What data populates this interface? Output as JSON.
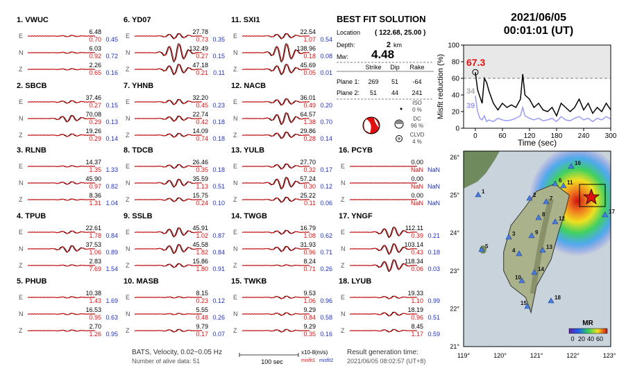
{
  "stations": [
    {
      "title": "1.  VWUC",
      "traces": [
        {
          "comp": "E",
          "amp": "6.48",
          "misfit1": "0.70",
          "misfit2": "0.45"
        },
        {
          "comp": "N",
          "amp": "6.03",
          "misfit1": "0.92",
          "misfit2": "0.72"
        },
        {
          "comp": "Z",
          "amp": "2.26",
          "misfit1": "0.65",
          "misfit2": "0.16"
        }
      ]
    },
    {
      "title": "2.  SBCB",
      "traces": [
        {
          "comp": "E",
          "amp": "37.46",
          "misfit1": "0.27",
          "misfit2": "0.15"
        },
        {
          "comp": "N",
          "amp": "70.08",
          "misfit1": "0.29",
          "misfit2": "0.13"
        },
        {
          "comp": "Z",
          "amp": "19.26",
          "misfit1": "0.29",
          "misfit2": "0.14"
        }
      ]
    },
    {
      "title": "3.  RLNB",
      "traces": [
        {
          "comp": "E",
          "amp": "14.37",
          "misfit1": "1.35",
          "misfit2": "1.33"
        },
        {
          "comp": "N",
          "amp": "45.90",
          "misfit1": "0.97",
          "misfit2": "0.82"
        },
        {
          "comp": "Z",
          "amp": "8.36",
          "misfit1": "1.31",
          "misfit2": "1.04"
        }
      ]
    },
    {
      "title": "4.  TPUB",
      "traces": [
        {
          "comp": "E",
          "amp": "22.61",
          "misfit1": "1.78",
          "misfit2": "0.84"
        },
        {
          "comp": "N",
          "amp": "37.53",
          "misfit1": "1.06",
          "misfit2": "0.89"
        },
        {
          "comp": "Z",
          "amp": "2.83",
          "misfit1": "7.69",
          "misfit2": "1.54"
        }
      ]
    },
    {
      "title": "5.  PHUB",
      "traces": [
        {
          "comp": "E",
          "amp": "10.38",
          "misfit1": "1.43",
          "misfit2": "1.69"
        },
        {
          "comp": "N",
          "amp": "16.53",
          "misfit1": "0.95",
          "misfit2": "0.63"
        },
        {
          "comp": "Z",
          "amp": "2.70",
          "misfit1": "1.26",
          "misfit2": "0.95"
        }
      ]
    },
    {
      "title": "6.  YD07",
      "traces": [
        {
          "comp": "E",
          "amp": "27.78",
          "misfit1": "0.73",
          "misfit2": "0.35"
        },
        {
          "comp": "N",
          "amp": "132.49",
          "misfit1": "0.27",
          "misfit2": "0.15"
        },
        {
          "comp": "Z",
          "amp": "47.18",
          "misfit1": "0.21",
          "misfit2": "0.11"
        }
      ]
    },
    {
      "title": "7.  YHNB",
      "traces": [
        {
          "comp": "E",
          "amp": "32.20",
          "misfit1": "0.45",
          "misfit2": "0.23"
        },
        {
          "comp": "N",
          "amp": "22.74",
          "misfit1": "0.42",
          "misfit2": "0.18"
        },
        {
          "comp": "Z",
          "amp": "14.09",
          "misfit1": "0.74",
          "misfit2": "0.18"
        }
      ]
    },
    {
      "title": "8.  TDCB",
      "traces": [
        {
          "comp": "E",
          "amp": "26.46",
          "misfit1": "0.35",
          "misfit2": "0.18"
        },
        {
          "comp": "N",
          "amp": "35.59",
          "misfit1": "1.13",
          "misfit2": "0.51"
        },
        {
          "comp": "Z",
          "amp": "15.75",
          "misfit1": "0.24",
          "misfit2": "0.10"
        }
      ]
    },
    {
      "title": "9.  SSLB",
      "traces": [
        {
          "comp": "E",
          "amp": "45.91",
          "misfit1": "1.02",
          "misfit2": "0.87"
        },
        {
          "comp": "N",
          "amp": "45.58",
          "misfit1": "1.82",
          "misfit2": "0.84"
        },
        {
          "comp": "Z",
          "amp": "15.86",
          "misfit1": "1.80",
          "misfit2": "0.91"
        }
      ]
    },
    {
      "title": "10.  MASB",
      "traces": [
        {
          "comp": "E",
          "amp": "8.15",
          "misfit1": "0.23",
          "misfit2": "0.12"
        },
        {
          "comp": "N",
          "amp": "5.55",
          "misfit1": "0.48",
          "misfit2": "0.26"
        },
        {
          "comp": "Z",
          "amp": "9.79",
          "misfit1": "0.17",
          "misfit2": "0.07"
        }
      ]
    },
    {
      "title": "11.  SXI1",
      "traces": [
        {
          "comp": "E",
          "amp": "22.54",
          "misfit1": "1.07",
          "misfit2": "0.54"
        },
        {
          "comp": "N",
          "amp": "138.96",
          "misfit1": "0.18",
          "misfit2": "0.08"
        },
        {
          "comp": "Z",
          "amp": "45.69",
          "misfit1": "0.05",
          "misfit2": "0.01"
        }
      ]
    },
    {
      "title": "12.  NACB",
      "traces": [
        {
          "comp": "E",
          "amp": "36.01",
          "misfit1": "0.49",
          "misfit2": "0.20"
        },
        {
          "comp": "N",
          "amp": "64.57",
          "misfit1": "1.38",
          "misfit2": "0.70"
        },
        {
          "comp": "Z",
          "amp": "29.86",
          "misfit1": "0.28",
          "misfit2": "0.14"
        }
      ]
    },
    {
      "title": "13.  YULB",
      "traces": [
        {
          "comp": "E",
          "amp": "27.70",
          "misfit1": "0.32",
          "misfit2": "0.17"
        },
        {
          "comp": "N",
          "amp": "57.24",
          "misfit1": "0.30",
          "misfit2": "0.12"
        },
        {
          "comp": "Z",
          "amp": "25.22",
          "misfit1": "0.11",
          "misfit2": "0.06"
        }
      ]
    },
    {
      "title": "14.  TWGB",
      "traces": [
        {
          "comp": "E",
          "amp": "16.79",
          "misfit1": "1.08",
          "misfit2": "0.62"
        },
        {
          "comp": "N",
          "amp": "31.93",
          "misfit1": "0.96",
          "misfit2": "0.71"
        },
        {
          "comp": "Z",
          "amp": "8.24",
          "misfit1": "0.71",
          "misfit2": "0.26"
        }
      ]
    },
    {
      "title": "15.  TWKB",
      "traces": [
        {
          "comp": "E",
          "amp": "9.53",
          "misfit1": "1.06",
          "misfit2": "0.96"
        },
        {
          "comp": "N",
          "amp": "9.29",
          "misfit1": "0.84",
          "misfit2": "0.58"
        },
        {
          "comp": "Z",
          "amp": "9.29",
          "misfit1": "0.35",
          "misfit2": "0.16"
        }
      ]
    },
    {
      "title": "16.  PCYB",
      "traces": [
        {
          "comp": "E",
          "amp": "0.00",
          "misfit1": "NaN",
          "misfit2": "NaN"
        },
        {
          "comp": "N",
          "amp": "0.00",
          "misfit1": "NaN",
          "misfit2": "NaN"
        },
        {
          "comp": "Z",
          "amp": "0.00",
          "misfit1": "NaN",
          "misfit2": "NaN"
        }
      ]
    },
    {
      "title": "17.  YNGF",
      "traces": [
        {
          "comp": "E",
          "amp": "112.11",
          "misfit1": "0.39",
          "misfit2": "0.21"
        },
        {
          "comp": "N",
          "amp": "103.14",
          "misfit1": "0.43",
          "misfit2": "0.18"
        },
        {
          "comp": "Z",
          "amp": "118.34",
          "misfit1": "0.06",
          "misfit2": "0.03"
        }
      ]
    },
    {
      "title": "18.  LYUB",
      "traces": [
        {
          "comp": "E",
          "amp": "19.33",
          "misfit1": "1.10",
          "misfit2": "0.99"
        },
        {
          "comp": "N",
          "amp": "18.19",
          "misfit1": "0.96",
          "misfit2": "0.51"
        },
        {
          "comp": "Z",
          "amp": "8.45",
          "misfit1": "1.17",
          "misfit2": "0.59"
        }
      ]
    }
  ],
  "solution": {
    "title": "BEST FIT SOLUTION",
    "location_label": "Location",
    "location": "( 122.68, 25.00 )",
    "depth_label": "Depth:",
    "depth": "2",
    "depth_unit": "km",
    "mw_label": "Mw:",
    "mw": "4.48",
    "plane_headers": [
      "Strike",
      "Dip",
      "Rake"
    ],
    "planes": [
      {
        "label": "Plane 1:",
        "values": [
          "269",
          "51",
          "-64"
        ]
      },
      {
        "label": "Plane 2:",
        "values": [
          "51",
          "44",
          "241"
        ]
      }
    ],
    "components": [
      {
        "name": "ISO",
        "percent": "0 %"
      },
      {
        "name": "DC",
        "percent": "96 %"
      },
      {
        "name": "CLVD",
        "percent": "4 %"
      }
    ]
  },
  "event": {
    "date": "2021/06/05",
    "time": "00:01:01  (UT)"
  },
  "chart_data": {
    "type": "line",
    "ylabel": "Misfit reduction (%)",
    "xlabel": "Time (sec)",
    "x": [
      0,
      5,
      10,
      15,
      20,
      25,
      30,
      40,
      50,
      60,
      70,
      80,
      90,
      100,
      105,
      110,
      120,
      130,
      140,
      150,
      160,
      170,
      180,
      190,
      200,
      210,
      220,
      230,
      240,
      250,
      260,
      270,
      280,
      290,
      300
    ],
    "xlim": [
      -26,
      300
    ],
    "xticks": [
      0,
      60,
      120,
      180,
      240,
      300
    ],
    "ylim": [
      0,
      100
    ],
    "yticks": [
      0,
      20,
      40,
      60,
      80,
      100
    ],
    "reference_line": 60,
    "series": [
      {
        "color": "#000000",
        "values": [
          67.3,
          46,
          38,
          30,
          60,
          55,
          45,
          30,
          22,
          30,
          25,
          28,
          25,
          35,
          65,
          40,
          35,
          25,
          30,
          22,
          20,
          25,
          15,
          30,
          25,
          20,
          25,
          35,
          22,
          30,
          18,
          25,
          20,
          30,
          22
        ]
      },
      {
        "color": "#9a9cf4",
        "values": [
          39,
          20,
          12,
          10,
          15,
          8,
          10,
          8,
          12,
          10,
          9,
          10,
          12,
          15,
          25,
          15,
          12,
          10,
          12,
          9,
          10,
          12,
          8,
          14,
          10,
          9,
          12,
          14,
          10,
          12,
          8,
          12,
          10,
          14,
          11
        ]
      }
    ],
    "annotations": [
      {
        "text": "67.3",
        "color": "#e01010"
      },
      {
        "text": "34",
        "color": "#aaaaaa"
      },
      {
        "text": "39",
        "color": "#9a9cf4"
      }
    ]
  },
  "map": {
    "lat_labels": [
      "26°",
      "25°",
      "24°",
      "23°",
      "22°",
      "21°"
    ],
    "lon_labels": [
      "119°",
      "120°",
      "121°",
      "122°",
      "123°"
    ],
    "stations": [
      "1",
      "2",
      "3",
      "4",
      "5",
      "6",
      "7",
      "8",
      "9",
      "10",
      "11",
      "12",
      "13",
      "14",
      "15",
      "16",
      "17",
      "18"
    ],
    "colorbar_title": "MR",
    "colorbar_ticks": [
      "0",
      "20",
      "40",
      "60"
    ]
  },
  "footer": {
    "filter": "BATS, Velocity, 0.02~0.05 Hz",
    "alive": "Number of alive data: 51",
    "scale": "100 sec",
    "units": "x10-8(m/s)",
    "misfit1": "misfit1",
    "misfit2": "misfit2",
    "result_label": "Result generation time:",
    "result_time": "2021/06/05 08:02:57 (UT+8)"
  }
}
